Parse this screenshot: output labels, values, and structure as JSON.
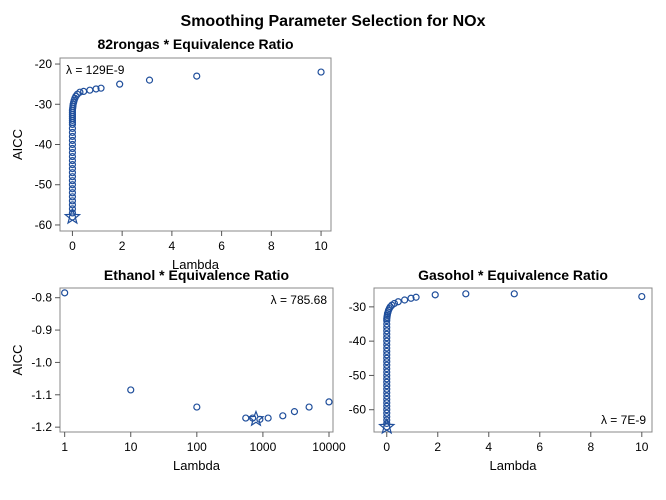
{
  "figure_title": "Smoothing Parameter Selection for NOx",
  "colors": {
    "marker": "#1f4e9b",
    "frame": "#888888",
    "text": "#000000"
  },
  "chart_data": [
    {
      "id": "p1",
      "type": "scatter",
      "title": "82rongas * Equivalence Ratio",
      "xlabel": "Lambda",
      "ylabel": "AICC",
      "xscale": "linear",
      "xlim": [
        -0.5,
        10.4
      ],
      "ylim": [
        -61.5,
        -18.5
      ],
      "xticks": [
        0,
        2,
        4,
        6,
        8,
        10
      ],
      "xtick_labels": [
        "0",
        "2",
        "4",
        "6",
        "8",
        "10"
      ],
      "yticks": [
        -60,
        -50,
        -40,
        -30,
        -20
      ],
      "ytick_labels": [
        "-60",
        "-50",
        "-40",
        "-30",
        "-20"
      ],
      "annotation": "λ = 129E-9",
      "annotation_position": "top-left",
      "x": [
        0.0,
        0.0,
        0.0,
        0.0,
        0.0,
        0.0,
        0.0,
        0.0,
        0.0,
        0.0,
        0.0,
        0.0,
        0.0,
        0.0,
        0.0,
        0.0,
        0.0,
        0.0,
        0.0,
        0.0,
        0.0,
        0.0,
        0.0,
        0.0,
        0.0,
        0.0,
        0.0,
        0.0,
        0.0,
        0.0,
        0.0,
        0.01,
        0.02,
        0.03,
        0.05,
        0.07,
        0.1,
        0.14,
        0.2,
        0.3,
        0.45,
        0.7,
        0.95,
        1.15,
        1.9,
        3.1,
        5.0,
        10.0
      ],
      "y": [
        -58.0,
        -57.0,
        -56.0,
        -55.0,
        -54.0,
        -53.0,
        -52.0,
        -51.0,
        -50.0,
        -49.0,
        -48.0,
        -47.0,
        -46.0,
        -45.0,
        -44.0,
        -43.0,
        -42.0,
        -41.0,
        -40.0,
        -39.0,
        -38.0,
        -37.0,
        -36.0,
        -35.0,
        -34.5,
        -34.0,
        -33.5,
        -33.0,
        -32.5,
        -32.0,
        -31.5,
        -31.0,
        -30.5,
        -30.0,
        -29.5,
        -29.0,
        -28.5,
        -28.0,
        -27.5,
        -27.0,
        -26.8,
        -26.5,
        -26.2,
        -26.0,
        -25.0,
        -24.0,
        -23.0,
        -22.0
      ],
      "selected": {
        "x": 0.0,
        "y": -58.0
      }
    },
    {
      "id": "p2",
      "type": "scatter",
      "title": "Ethanol * Equivalence Ratio",
      "xlabel": "Lambda",
      "ylabel": "AICC",
      "xscale": "log",
      "xlim": [
        0.85,
        11500
      ],
      "ylim": [
        -1.215,
        -0.77
      ],
      "xticks": [
        1,
        10,
        100,
        1000,
        10000
      ],
      "xtick_labels": [
        "1",
        "10",
        "100",
        "1000",
        "10000"
      ],
      "yticks": [
        -1.2,
        -1.1,
        -1.0,
        -0.9,
        -0.8
      ],
      "ytick_labels": [
        "-1.2",
        "-1.1",
        "-1.0",
        "-0.9",
        "-0.8"
      ],
      "annotation": "λ = 785.68",
      "annotation_position": "top-right",
      "x": [
        1,
        10,
        100,
        550,
        700,
        900,
        1200,
        2000,
        3000,
        5000,
        10000
      ],
      "y": [
        -0.785,
        -1.085,
        -1.138,
        -1.172,
        -1.172,
        -1.176,
        -1.172,
        -1.165,
        -1.152,
        -1.138,
        -1.122
      ],
      "selected": {
        "x": 785.68,
        "y": -1.175
      }
    },
    {
      "id": "p3",
      "type": "scatter",
      "title": "Gasohol * Equivalence Ratio",
      "xlabel": "Lambda",
      "ylabel": "",
      "xscale": "linear",
      "xlim": [
        -0.5,
        10.4
      ],
      "ylim": [
        -66.5,
        -24.5
      ],
      "xticks": [
        0,
        2,
        4,
        6,
        8,
        10
      ],
      "xtick_labels": [
        "0",
        "2",
        "4",
        "6",
        "8",
        "10"
      ],
      "yticks": [
        -60,
        -50,
        -40,
        -30
      ],
      "ytick_labels": [
        "-60",
        "-50",
        "-40",
        "-30"
      ],
      "annotation": "λ = 7E-9",
      "annotation_position": "bottom-right",
      "x": [
        0.0,
        0.0,
        0.0,
        0.0,
        0.0,
        0.0,
        0.0,
        0.0,
        0.0,
        0.0,
        0.0,
        0.0,
        0.0,
        0.0,
        0.0,
        0.0,
        0.0,
        0.0,
        0.0,
        0.0,
        0.0,
        0.0,
        0.0,
        0.0,
        0.0,
        0.0,
        0.0,
        0.0,
        0.0,
        0.0,
        0.0,
        0.0,
        0.0,
        0.01,
        0.02,
        0.03,
        0.05,
        0.07,
        0.1,
        0.14,
        0.2,
        0.3,
        0.45,
        0.7,
        0.95,
        1.15,
        1.9,
        3.1,
        5.0,
        10.0
      ],
      "y": [
        -65.0,
        -64.0,
        -63.0,
        -62.0,
        -61.0,
        -60.0,
        -59.0,
        -58.0,
        -57.0,
        -56.0,
        -55.0,
        -54.0,
        -53.0,
        -52.0,
        -51.0,
        -50.0,
        -49.0,
        -48.0,
        -47.0,
        -46.0,
        -45.0,
        -44.0,
        -43.0,
        -42.0,
        -41.0,
        -40.0,
        -39.0,
        -38.0,
        -37.0,
        -36.0,
        -35.0,
        -34.0,
        -33.5,
        -33.0,
        -32.5,
        -32.0,
        -31.5,
        -31.0,
        -30.5,
        -30.0,
        -29.5,
        -29.0,
        -28.5,
        -28.0,
        -27.5,
        -27.2,
        -26.5,
        -26.2,
        -26.2,
        -27.0
      ],
      "selected": {
        "x": 0.0,
        "y": -65.0
      }
    }
  ]
}
